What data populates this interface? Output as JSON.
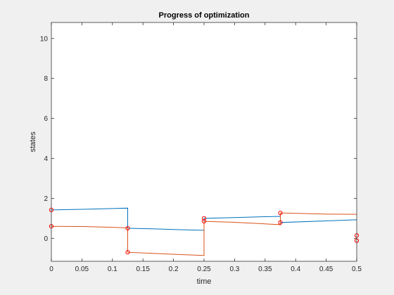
{
  "chart_data": {
    "type": "line",
    "title": "Progress of optimization",
    "xlabel": "time",
    "ylabel": "states",
    "xlim": [
      0,
      0.5
    ],
    "ylim": [
      -1.15,
      10.8
    ],
    "xticks": [
      0,
      0.05,
      0.1,
      0.15,
      0.2,
      0.25,
      0.3,
      0.35,
      0.4,
      0.45,
      0.5
    ],
    "xtick_labels": [
      "0",
      "0.05",
      "0.1",
      "0.15",
      "0.2",
      "0.25",
      "0.3",
      "0.35",
      "0.4",
      "0.45",
      "0.5"
    ],
    "yticks": [
      0,
      2,
      4,
      6,
      8,
      10
    ],
    "ytick_labels": [
      "0",
      "2",
      "4",
      "6",
      "8",
      "10"
    ],
    "grid": false,
    "series": [
      {
        "color": "#0072bd",
        "x": [
          0,
          0.05,
          0.1,
          0.125,
          0.125,
          0.17,
          0.21,
          0.25,
          0.25,
          0.3,
          0.35,
          0.375,
          0.375,
          0.45,
          0.5
        ],
        "y": [
          1.42,
          1.45,
          1.49,
          1.51,
          0.5,
          0.47,
          0.43,
          0.4,
          1.0,
          1.04,
          1.08,
          1.1,
          0.79,
          0.87,
          0.93
        ]
      },
      {
        "color": "#d95319",
        "x": [
          0,
          0.05,
          0.1,
          0.125,
          0.125,
          0.17,
          0.21,
          0.25,
          0.25,
          0.3,
          0.35,
          0.375,
          0.375,
          0.45,
          0.5
        ],
        "y": [
          0.6,
          0.59,
          0.55,
          0.52,
          -0.7,
          -0.76,
          -0.81,
          -0.86,
          0.85,
          0.8,
          0.72,
          0.68,
          1.27,
          1.21,
          1.2
        ]
      }
    ],
    "markers": {
      "color": "#ff0000",
      "symbol": "circle",
      "points": [
        {
          "x": 0,
          "y": 1.42
        },
        {
          "x": 0,
          "y": 0.6
        },
        {
          "x": 0.125,
          "y": 0.5
        },
        {
          "x": 0.125,
          "y": -0.7
        },
        {
          "x": 0.25,
          "y": 1.0
        },
        {
          "x": 0.25,
          "y": 0.85
        },
        {
          "x": 0.375,
          "y": 1.27
        },
        {
          "x": 0.375,
          "y": 0.79
        },
        {
          "x": 0.5,
          "y": 0.14
        },
        {
          "x": 0.5,
          "y": -0.12
        }
      ]
    }
  }
}
